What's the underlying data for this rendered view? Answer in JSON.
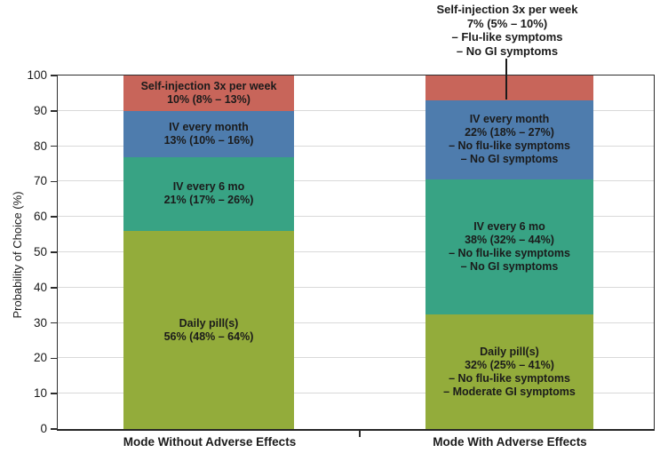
{
  "chart_data": {
    "type": "bar",
    "stacked": true,
    "title": "",
    "xlabel": "",
    "ylabel": "Probability of Choice (%)",
    "ylim": [
      0,
      100
    ],
    "yticks": [
      0,
      10,
      20,
      30,
      40,
      50,
      60,
      70,
      80,
      90,
      100
    ],
    "grid": "horizontal",
    "legend": "none (labels inside segments)",
    "colors": {
      "daily_pill": "#93AC3B",
      "iv_6mo": "#38A384",
      "iv_month": "#4E7CAD",
      "self_injection": "#C8655A"
    },
    "categories": [
      "Mode Without Adverse Effects",
      "Mode With Adverse Effects"
    ],
    "series": [
      {
        "name": "Daily pill(s)",
        "color": "daily_pill",
        "values": [
          56,
          32
        ]
      },
      {
        "name": "IV every 6 mo",
        "color": "iv_6mo",
        "values": [
          21,
          38
        ]
      },
      {
        "name": "IV every month",
        "color": "iv_month",
        "values": [
          13,
          22
        ]
      },
      {
        "name": "Self-injection 3x per week",
        "color": "self_injection",
        "values": [
          10,
          7
        ]
      }
    ],
    "bars": [
      {
        "category": "Mode Without Adverse Effects",
        "segments": [
          {
            "series": "Daily pill(s)",
            "color": "daily_pill",
            "value": 56,
            "lines": [
              "Daily pill(s)",
              "56% (48% – 64%)"
            ]
          },
          {
            "series": "IV every 6 mo",
            "color": "iv_6mo",
            "value": 21,
            "lines": [
              "IV every 6 mo",
              "21% (17% – 26%)"
            ]
          },
          {
            "series": "IV every month",
            "color": "iv_month",
            "value": 13,
            "lines": [
              "IV every month",
              "13% (10% – 16%)"
            ]
          },
          {
            "series": "Self-injection 3x per week",
            "color": "self_injection",
            "value": 10,
            "lines": [
              "Self-injection 3x per week",
              "10% (8% – 13%)"
            ]
          }
        ]
      },
      {
        "category": "Mode With Adverse Effects",
        "segments": [
          {
            "series": "Daily pill(s)",
            "color": "daily_pill",
            "value": 32,
            "lines": [
              "Daily pill(s)",
              "32% (25% – 41%)",
              "– No flu-like symptoms",
              "– Moderate GI symptoms"
            ]
          },
          {
            "series": "IV every 6 mo",
            "color": "iv_6mo",
            "value": 38,
            "lines": [
              "IV every 6 mo",
              "38% (32% – 44%)",
              "– No flu-like symptoms",
              "– No GI symptoms"
            ]
          },
          {
            "series": "IV every month",
            "color": "iv_month",
            "value": 22,
            "lines": [
              "IV every month",
              "22% (18% – 27%)",
              "– No flu-like symptoms",
              "– No GI symptoms"
            ]
          },
          {
            "series": "Self-injection 3x per week",
            "color": "self_injection",
            "value": 7,
            "lines": []
          }
        ]
      }
    ],
    "annotation": {
      "target": "Mode With Adverse Effects / Self-injection 3x per week segment",
      "lines": [
        "Self-injection 3x per week",
        "7% (5% – 10%)",
        "– Flu-like symptoms",
        "– No GI symptoms"
      ]
    }
  }
}
